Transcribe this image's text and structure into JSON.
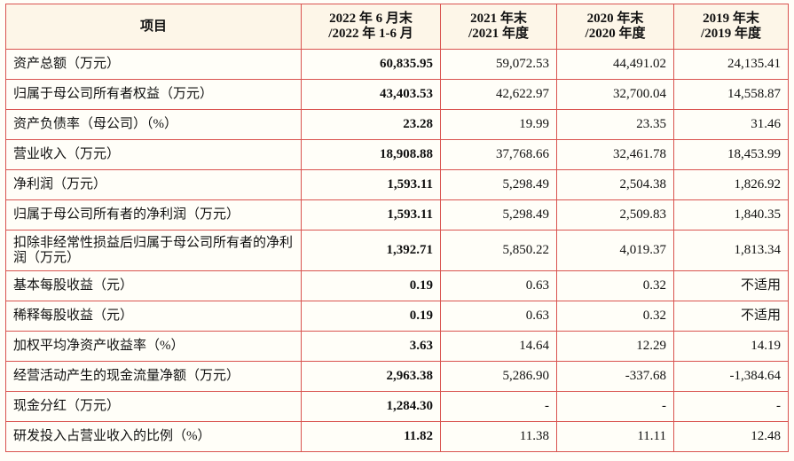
{
  "table": {
    "header": [
      [
        "项目"
      ],
      [
        "2022 年 6 月末",
        "/2022 年 1-6 月"
      ],
      [
        "2021 年末",
        "/2021 年度"
      ],
      [
        "2020 年末",
        "/2020 年度"
      ],
      [
        "2019 年末",
        "/2019 年度"
      ]
    ],
    "rows": [
      [
        "资产总额（万元）",
        "60,835.95",
        "59,072.53",
        "44,491.02",
        "24,135.41"
      ],
      [
        "归属于母公司所有者权益（万元）",
        "43,403.53",
        "42,622.97",
        "32,700.04",
        "14,558.87"
      ],
      [
        "资产负债率（母公司）（%）",
        "23.28",
        "19.99",
        "23.35",
        "31.46"
      ],
      [
        "营业收入（万元）",
        "18,908.88",
        "37,768.66",
        "32,461.78",
        "18,453.99"
      ],
      [
        "净利润（万元）",
        "1,593.11",
        "5,298.49",
        "2,504.38",
        "1,826.92"
      ],
      [
        "归属于母公司所有者的净利润（万元）",
        "1,593.11",
        "5,298.49",
        "2,509.83",
        "1,840.35"
      ],
      [
        "扣除非经常性损益后归属于母公司所有者的净利润（万元）",
        "1,392.71",
        "5,850.22",
        "4,019.37",
        "1,813.34"
      ],
      [
        "基本每股收益（元）",
        "0.19",
        "0.63",
        "0.32",
        "不适用"
      ],
      [
        "稀释每股收益（元）",
        "0.19",
        "0.63",
        "0.32",
        "不适用"
      ],
      [
        "加权平均净资产收益率（%）",
        "3.63",
        "14.64",
        "12.29",
        "14.19"
      ],
      [
        "经营活动产生的现金流量净额（万元）",
        "2,963.38",
        "5,286.90",
        "-337.68",
        "-1,384.64"
      ],
      [
        "现金分红（万元）",
        "1,284.30",
        "-",
        "-",
        "-"
      ],
      [
        "研发投入占营业收入的比例（%）",
        "11.82",
        "11.38",
        "11.11",
        "12.48"
      ]
    ]
  }
}
